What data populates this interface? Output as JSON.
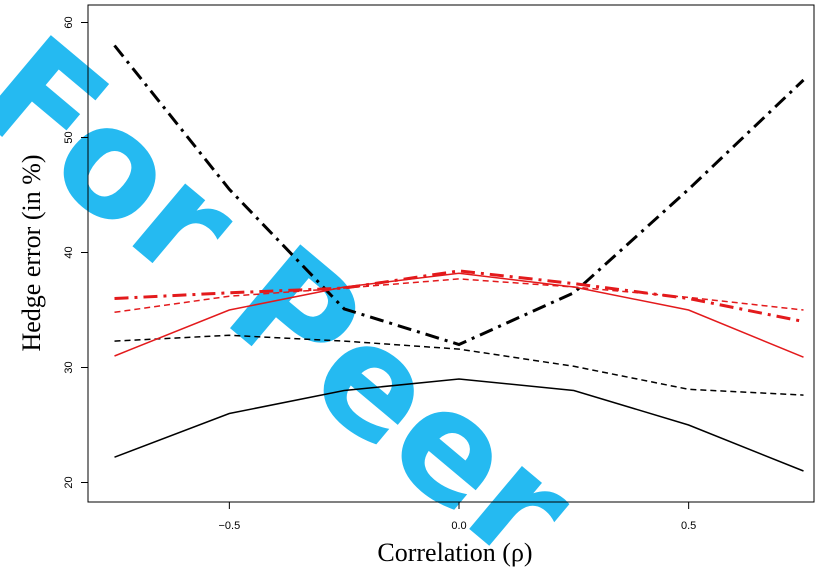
{
  "watermark": "For Peer",
  "chart_data": {
    "type": "line",
    "xlabel": "Correlation (ρ)",
    "ylabel": "Hedge error (in %)",
    "xlim": [
      -0.8,
      0.8
    ],
    "ylim": [
      18,
      62
    ],
    "x_ticks": [
      -0.5,
      0.0,
      0.5
    ],
    "x_tick_labels": [
      "−0.5",
      "0.0",
      "0.5"
    ],
    "y_ticks": [
      20,
      30,
      40,
      50,
      60
    ],
    "y_tick_labels": [
      "20",
      "30",
      "40",
      "50",
      "60"
    ],
    "grid": false,
    "x": [
      -0.75,
      -0.5,
      -0.25,
      0.0,
      0.25,
      0.5,
      0.75
    ],
    "series": [
      {
        "color": "#000000",
        "style": "solid",
        "width": 1.5,
        "values": [
          22.2,
          26.0,
          28.0,
          29.0,
          28.0,
          25.0,
          21.0
        ]
      },
      {
        "color": "#000000",
        "style": "dashed",
        "width": 1.5,
        "values": [
          32.3,
          32.8,
          32.3,
          31.6,
          30.1,
          28.1,
          27.6
        ]
      },
      {
        "color": "#000000",
        "style": "dashdot",
        "width": 3,
        "values": [
          58.0,
          45.5,
          35.1,
          32.0,
          36.5,
          45.5,
          55.0
        ]
      },
      {
        "color": "#e31a1c",
        "style": "solid",
        "width": 1.5,
        "values": [
          31.0,
          35.0,
          37.0,
          38.2,
          37.0,
          35.0,
          30.9
        ]
      },
      {
        "color": "#e31a1c",
        "style": "dashed",
        "width": 1.5,
        "values": [
          34.8,
          36.2,
          36.9,
          37.7,
          37.0,
          36.1,
          35.0
        ]
      },
      {
        "color": "#e31a1c",
        "style": "dashdot",
        "width": 3,
        "values": [
          36.0,
          36.5,
          36.9,
          38.4,
          37.3,
          36.0,
          34.0
        ]
      }
    ]
  }
}
